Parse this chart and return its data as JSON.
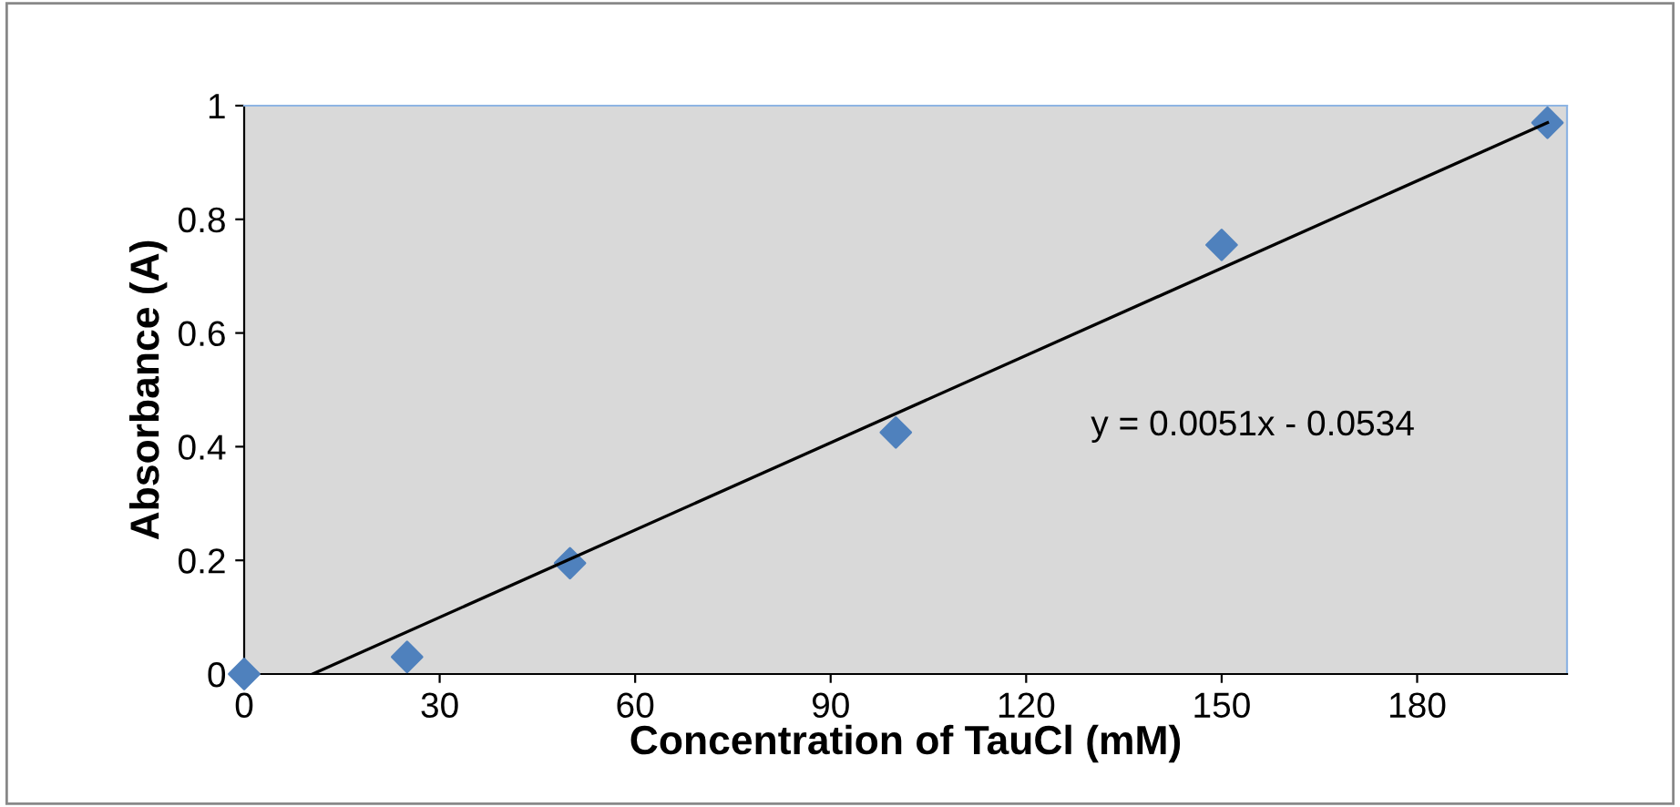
{
  "chart_data": {
    "type": "scatter",
    "xlabel": "Concentration of TauCl (mM)",
    "ylabel": "Absorbance (A)",
    "x": [
      0,
      25,
      50,
      100,
      150,
      200
    ],
    "series": [
      {
        "type": "scatter",
        "color": "#4f81bd",
        "marker": "diamond",
        "values": [
          0,
          0.03,
          0.195,
          0.425,
          0.755,
          0.97
        ]
      },
      {
        "type": "line",
        "color": "#000000",
        "marker": "none",
        "line_style": "solid",
        "x": [
          10.5,
          200
        ],
        "values": [
          0,
          0.97
        ]
      }
    ],
    "xlim": [
      0,
      203
    ],
    "xticks": [
      0,
      30,
      60,
      90,
      120,
      150,
      180
    ],
    "ylim": [
      0,
      1
    ],
    "yticks": [
      0,
      0.2,
      0.4,
      0.6,
      0.8,
      1
    ],
    "grid": false,
    "legend": false,
    "annotations": [
      "y = 0.0051x - 0.0534"
    ]
  }
}
